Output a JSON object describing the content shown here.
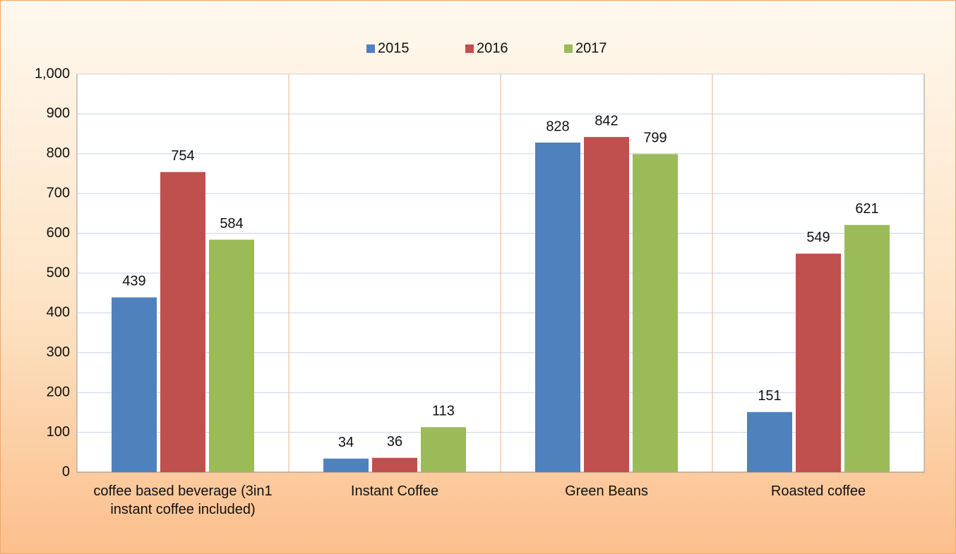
{
  "chart_data": {
    "type": "bar",
    "categories": [
      "coffee based beverage (3in1 instant coffee included)",
      "Instant Coffee",
      "Green Beans",
      "Roasted coffee"
    ],
    "series": [
      {
        "name": "2015",
        "color": "#4f81bd",
        "values": [
          439,
          34,
          828,
          151
        ]
      },
      {
        "name": "2016",
        "color": "#c0504d",
        "values": [
          754,
          36,
          842,
          549
        ]
      },
      {
        "name": "2017",
        "color": "#9bbb59",
        "values": [
          584,
          113,
          799,
          621
        ]
      }
    ],
    "ylim": [
      0,
      1000
    ],
    "yticks": [
      0,
      100,
      200,
      300,
      400,
      500,
      600,
      700,
      800,
      900,
      {
        "value": 1000,
        "label": "1,000"
      }
    ],
    "grid": true,
    "legend": "top"
  }
}
